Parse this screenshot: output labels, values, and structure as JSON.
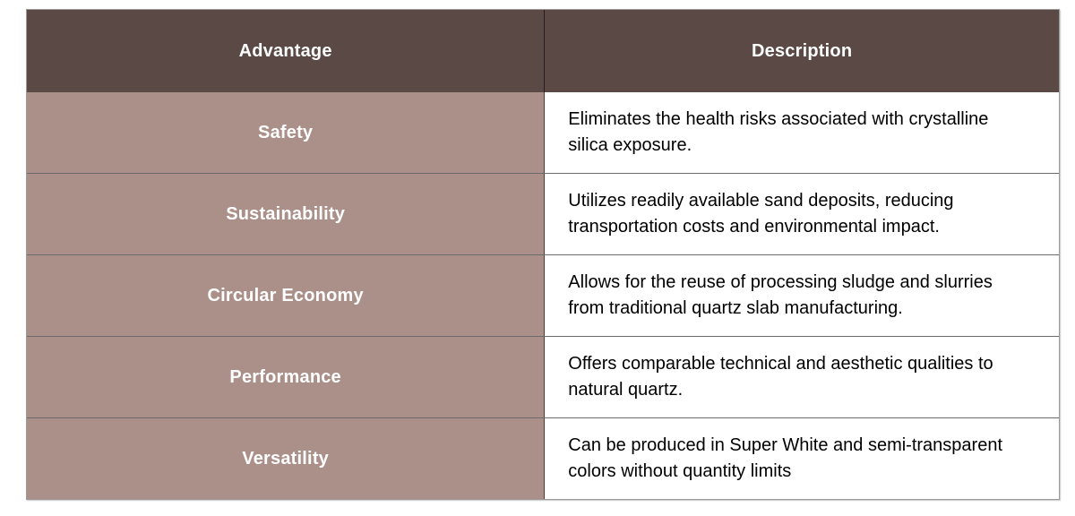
{
  "table": {
    "columns": [
      {
        "label": "Advantage"
      },
      {
        "label": "Description"
      }
    ],
    "rows": [
      {
        "advantage": "Safety",
        "description": "Eliminates the health risks associated with crystalline silica exposure."
      },
      {
        "advantage": "Sustainability",
        "description": "Utilizes readily available sand deposits, reducing transportation costs and environmental impact."
      },
      {
        "advantage": "Circular Economy",
        "description": "Allows for the reuse of processing sludge and slurries from traditional quartz slab manufacturing."
      },
      {
        "advantage": "Performance",
        "description": "Offers comparable technical and aesthetic qualities to natural quartz."
      },
      {
        "advantage": "Versatility",
        "description": "Can be produced in Super White and semi-transparent colors without quantity limits"
      }
    ],
    "colors": {
      "header_bg": "#5a4944",
      "header_text": "#ffffff",
      "advantage_bg": "#ab8f89",
      "advantage_text": "#ffffff",
      "description_bg": "#ffffff",
      "description_text": "#000000",
      "grid_line": "rgba(0,0,0,0.58)",
      "outer_border": "#9b9b9b"
    }
  }
}
